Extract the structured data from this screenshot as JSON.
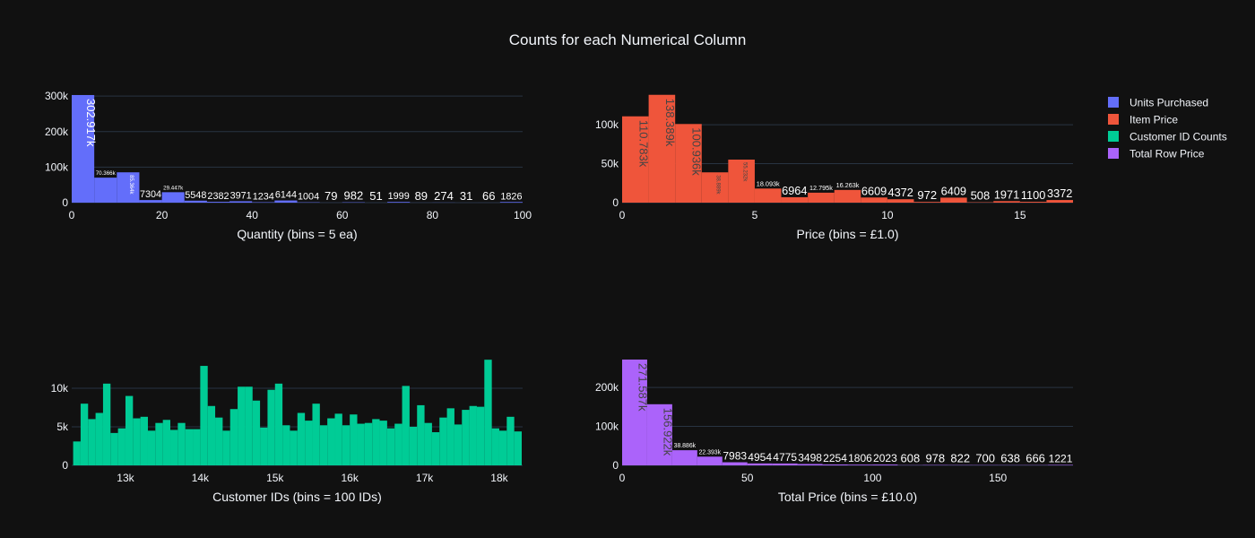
{
  "title": "Counts for each Numerical Column",
  "chart_data": [
    {
      "type": "histogram",
      "name": "Units Purchased",
      "color": "#636efa",
      "label_color": "#ffffff",
      "x_label": "Quantity (bins = 5 ea)",
      "bins": [
        0,
        5,
        10,
        15,
        20,
        25,
        30,
        35,
        40,
        45,
        50,
        55,
        60,
        65,
        70,
        75,
        80,
        85,
        90,
        95,
        100
      ],
      "values": [
        302917,
        70366,
        85364,
        7304,
        29447,
        5548,
        2382,
        3971,
        1234,
        6144,
        1004,
        79,
        982,
        51,
        1999,
        89,
        274,
        31,
        66,
        1826
      ],
      "value_labels": [
        "302.917k",
        "70.366k",
        "85.364k",
        "7304",
        "29.447k",
        "5548",
        "2382",
        "3971",
        "1234",
        "6144",
        "1004",
        "79",
        "982",
        "51",
        "1999",
        "89",
        "274",
        "31",
        "66",
        "1826"
      ],
      "xlim": [
        0,
        100
      ],
      "xticks": [
        0,
        20,
        40,
        60,
        80,
        100
      ],
      "ylim": [
        0,
        318000
      ],
      "yticks": [
        0,
        {
          "value": 100000,
          "label": "100k"
        },
        {
          "value": 200000,
          "label": "200k"
        },
        {
          "value": 300000,
          "label": "300k"
        }
      ],
      "grid": true
    },
    {
      "type": "histogram",
      "name": "Item Price",
      "color": "#EF553B",
      "label_color": "#444444",
      "x_label": "Price (bins =  £1.0)",
      "bins": [
        0,
        1,
        2,
        3,
        4,
        5,
        6,
        7,
        8,
        9,
        10,
        11,
        12,
        13,
        14,
        15,
        16,
        17
      ],
      "values": [
        110783,
        138389,
        100936,
        38889,
        55232,
        18093,
        6964,
        12795,
        16263,
        6609,
        4372,
        972,
        6409,
        508,
        1971,
        1100,
        3372
      ],
      "value_labels": [
        "110.783k",
        "138.389k",
        "100.936k",
        "38.889k",
        "55.232k",
        "18.093k",
        "6964",
        "12.795k",
        "16.263k",
        "6609",
        "4372",
        "972",
        "6409",
        "508",
        "1971",
        "1100",
        "3372"
      ],
      "xlim": [
        0,
        17
      ],
      "xticks": [
        0,
        5,
        10,
        15
      ],
      "ylim": [
        0,
        145000
      ],
      "yticks": [
        0,
        {
          "value": 50000,
          "label": "50k"
        },
        {
          "value": 100000,
          "label": "100k"
        }
      ],
      "grid": true
    },
    {
      "type": "histogram",
      "name": "Customer ID Counts",
      "color": "#00cc96",
      "x_label": "Customer IDs (bins = 100 IDs)",
      "bins": [
        12300,
        12400,
        12500,
        12600,
        12700,
        12800,
        12900,
        13000,
        13100,
        13200,
        13300,
        13400,
        13500,
        13600,
        13700,
        13800,
        13900,
        14000,
        14100,
        14200,
        14300,
        14400,
        14500,
        14600,
        14700,
        14800,
        14900,
        15000,
        15100,
        15200,
        15300,
        15400,
        15500,
        15600,
        15700,
        15800,
        15900,
        16000,
        16100,
        16200,
        16300,
        16400,
        16500,
        16600,
        16700,
        16800,
        16900,
        17000,
        17100,
        17200,
        17300,
        17400,
        17500,
        17600,
        17700,
        17800,
        17900,
        18000,
        18100,
        18200,
        18300
      ],
      "values": [
        3100,
        8000,
        6000,
        6800,
        10600,
        4200,
        4800,
        9000,
        6100,
        6300,
        4500,
        5500,
        5900,
        4600,
        5500,
        4700,
        4700,
        12900,
        7700,
        6200,
        4500,
        7300,
        10200,
        10200,
        8400,
        4900,
        9800,
        10600,
        5200,
        4500,
        6800,
        5800,
        8000,
        5200,
        6100,
        6700,
        5200,
        6600,
        5400,
        5500,
        6000,
        5800,
        4800,
        5400,
        10300,
        5000,
        7800,
        5500,
        4300,
        6200,
        7400,
        5300,
        7200,
        7700,
        7600,
        13700,
        4800,
        4500,
        6300,
        4400
      ],
      "xlim": [
        12281,
        18312
      ],
      "xticks": [
        {
          "value": 13000,
          "label": "13k"
        },
        {
          "value": 14000,
          "label": "14k"
        },
        {
          "value": 15000,
          "label": "15k"
        },
        {
          "value": 16000,
          "label": "16k"
        },
        {
          "value": 17000,
          "label": "17k"
        },
        {
          "value": 18000,
          "label": "18k"
        }
      ],
      "ylim": [
        0,
        14650
      ],
      "yticks": [
        0,
        {
          "value": 5000,
          "label": "5k"
        },
        {
          "value": 10000,
          "label": "10k"
        }
      ],
      "grid": true
    },
    {
      "type": "histogram",
      "name": "Total Row Price",
      "color": "#ab63fa",
      "label_color": "#444444",
      "x_label": "Total Price (bins =  £10.0)",
      "bins": [
        0,
        10,
        20,
        30,
        40,
        50,
        60,
        70,
        80,
        90,
        100,
        110,
        120,
        130,
        140,
        150,
        160,
        170,
        180
      ],
      "values": [
        271587,
        156922,
        38886,
        22393,
        7983,
        4954,
        4775,
        3498,
        2254,
        1806,
        2023,
        608,
        978,
        822,
        700,
        638,
        666,
        1221
      ],
      "value_labels": [
        "271.587k",
        "156.922k",
        "38.886k",
        "22.393k",
        "7983",
        "4954",
        "4775",
        "3498",
        "2254",
        "1806",
        "2023",
        "608",
        "978",
        "822",
        "700",
        "638",
        "666",
        "1221"
      ],
      "xlim": [
        0,
        180
      ],
      "xticks": [
        0,
        50,
        100,
        150
      ],
      "ylim": [
        0,
        290000
      ],
      "yticks": [
        0,
        {
          "value": 100000,
          "label": "100k"
        },
        {
          "value": 200000,
          "label": "200k"
        }
      ],
      "grid": true
    }
  ]
}
